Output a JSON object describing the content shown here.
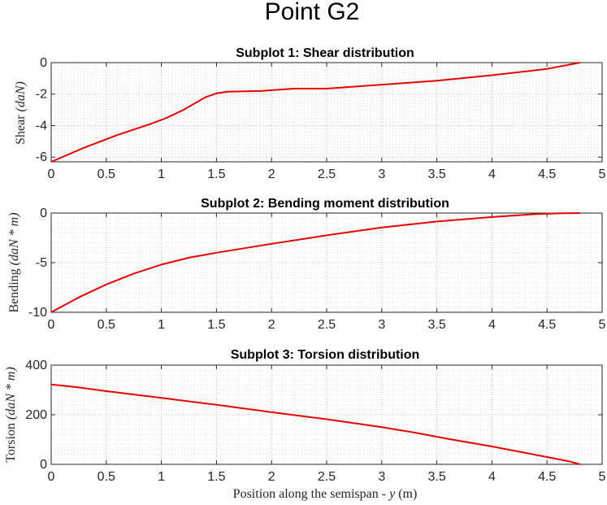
{
  "figure": {
    "suptitle": "Point G2",
    "xlabel_main": "Position along the semispan - ",
    "xlabel_var": "y",
    "xlabel_unit": " (m)"
  },
  "chart_data": [
    {
      "type": "line",
      "title": "Subplot 1: Shear distribution",
      "ylabel_main": "Shear ",
      "ylabel_unit": "(daN)",
      "xlim": [
        0,
        5
      ],
      "ylim": [
        -6.3,
        0
      ],
      "xticks": [
        0,
        0.5,
        1,
        1.5,
        2,
        2.5,
        3,
        3.5,
        4,
        4.5,
        5
      ],
      "xtick_labels": [
        "0",
        "0.5",
        "1",
        "1.5",
        "2",
        "2.5",
        "3",
        "3.5",
        "4",
        "4.5",
        "5"
      ],
      "yticks": [
        0,
        -2,
        -4,
        -6
      ],
      "ytick_labels": [
        "0",
        "-2",
        "-4",
        "-6"
      ],
      "grid": true,
      "minor_grid": true,
      "color": "#e60000",
      "x": [
        0,
        0.3,
        0.6,
        0.9,
        1.05,
        1.2,
        1.4,
        1.5,
        1.6,
        1.9,
        2.2,
        2.5,
        2.6,
        3.0,
        3.5,
        4.0,
        4.5,
        4.8
      ],
      "y": [
        -6.3,
        -5.4,
        -4.6,
        -3.9,
        -3.5,
        -3.0,
        -2.2,
        -1.95,
        -1.85,
        -1.8,
        -1.65,
        -1.65,
        -1.6,
        -1.4,
        -1.15,
        -0.8,
        -0.4,
        0
      ]
    },
    {
      "type": "line",
      "title": "Subplot 2: Bending moment distribution",
      "ylabel_main": "Bending ",
      "ylabel_unit": "(daN * m)",
      "xlim": [
        0,
        5
      ],
      "ylim": [
        -10,
        0
      ],
      "xticks": [
        0,
        0.5,
        1,
        1.5,
        2,
        2.5,
        3,
        3.5,
        4,
        4.5,
        5
      ],
      "xtick_labels": [
        "0",
        "0.5",
        "1",
        "1.5",
        "2",
        "2.5",
        "3",
        "3.5",
        "4",
        "4.5",
        "5"
      ],
      "yticks": [
        0,
        -5,
        -10
      ],
      "ytick_labels": [
        "0",
        "-5",
        "-10"
      ],
      "grid": true,
      "minor_grid": true,
      "color": "#e60000",
      "x": [
        0,
        0.25,
        0.5,
        0.75,
        1.0,
        1.25,
        1.5,
        2.0,
        2.5,
        3.0,
        3.5,
        4.0,
        4.4,
        4.6,
        4.8
      ],
      "y": [
        -10,
        -8.5,
        -7.2,
        -6.1,
        -5.2,
        -4.5,
        -4.0,
        -3.1,
        -2.25,
        -1.45,
        -0.85,
        -0.4,
        -0.1,
        -0.03,
        0
      ]
    },
    {
      "type": "line",
      "title": "Subplot 3: Torsion distribution",
      "ylabel_main": "Torsion ",
      "ylabel_unit": "(daN * m)",
      "xlim": [
        0,
        5
      ],
      "ylim": [
        0,
        400
      ],
      "xticks": [
        0,
        0.5,
        1,
        1.5,
        2,
        2.5,
        3,
        3.5,
        4,
        4.5,
        5
      ],
      "xtick_labels": [
        "0",
        "0.5",
        "1",
        "1.5",
        "2",
        "2.5",
        "3",
        "3.5",
        "4",
        "4.5",
        "5"
      ],
      "yticks": [
        0,
        200,
        400
      ],
      "ytick_labels": [
        "0",
        "200",
        "400"
      ],
      "grid": true,
      "minor_grid": true,
      "color": "#e60000",
      "x": [
        0,
        0.25,
        0.5,
        1.0,
        1.5,
        2.0,
        2.5,
        3.0,
        3.3,
        3.6,
        4.0,
        4.4,
        4.7,
        4.8
      ],
      "y": [
        322,
        310,
        295,
        268,
        240,
        210,
        182,
        150,
        128,
        103,
        72,
        38,
        12,
        0
      ]
    }
  ]
}
